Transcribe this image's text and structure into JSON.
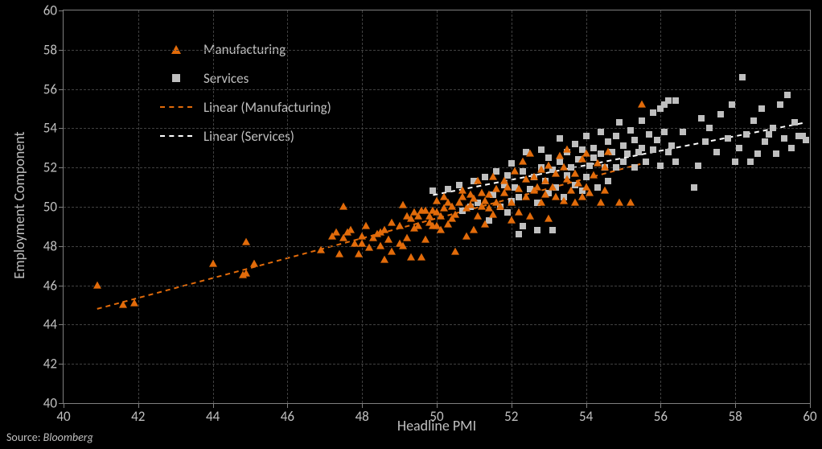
{
  "chart": {
    "type": "scatter",
    "background_color": "#000000",
    "plot_border_color": "#7f7f7f",
    "grid_color": "#404040",
    "text_color": "#bfbfbf",
    "font_family": "Calibri",
    "label_fontsize": 18,
    "tick_fontsize": 17,
    "xlabel": "Headline PMI",
    "ylabel": "Employment Component",
    "xlim": [
      40,
      60
    ],
    "ylim": [
      40,
      60
    ],
    "xticks": [
      40,
      42,
      44,
      46,
      48,
      50,
      52,
      54,
      56,
      58,
      60
    ],
    "yticks": [
      40,
      42,
      44,
      46,
      48,
      50,
      52,
      54,
      56,
      58,
      60
    ],
    "legend": {
      "position": "upper-left",
      "items": [
        {
          "label": "Manufacturing",
          "marker": "triangle",
          "color": "#e26b0a"
        },
        {
          "label": "Services",
          "marker": "square",
          "color": "#bfbfbf"
        },
        {
          "label": "Linear (Manufacturing)",
          "linestyle": "dashed",
          "color": "#e26b0a"
        },
        {
          "label": "Linear (Services)",
          "linestyle": "dashed",
          "color": "#ffffff"
        }
      ]
    },
    "series": {
      "manufacturing": {
        "marker": "triangle",
        "marker_color": "#e26b0a",
        "marker_size": 9,
        "data": [
          [
            40.9,
            46.0
          ],
          [
            41.6,
            45.0
          ],
          [
            41.9,
            45.1
          ],
          [
            44.0,
            47.1
          ],
          [
            44.8,
            46.5
          ],
          [
            44.9,
            46.6
          ],
          [
            44.9,
            48.2
          ],
          [
            45.1,
            47.1
          ],
          [
            46.9,
            47.8
          ],
          [
            47.2,
            48.5
          ],
          [
            47.3,
            48.7
          ],
          [
            47.4,
            47.6
          ],
          [
            47.5,
            50.0
          ],
          [
            47.5,
            48.4
          ],
          [
            47.6,
            48.7
          ],
          [
            47.7,
            48.8
          ],
          [
            47.8,
            48.1
          ],
          [
            47.9,
            47.6
          ],
          [
            48.0,
            48.1
          ],
          [
            48.0,
            48.5
          ],
          [
            48.1,
            49.0
          ],
          [
            48.2,
            47.9
          ],
          [
            48.3,
            48.4
          ],
          [
            48.4,
            48.6
          ],
          [
            48.5,
            48.0
          ],
          [
            48.5,
            48.7
          ],
          [
            48.6,
            47.3
          ],
          [
            48.6,
            48.8
          ],
          [
            48.7,
            48.3
          ],
          [
            48.8,
            47.7
          ],
          [
            48.8,
            49.2
          ],
          [
            49.0,
            49.0
          ],
          [
            49.0,
            48.1
          ],
          [
            49.1,
            50.1
          ],
          [
            49.1,
            48.0
          ],
          [
            49.2,
            49.5
          ],
          [
            49.2,
            48.4
          ],
          [
            49.3,
            49.4
          ],
          [
            49.3,
            47.4
          ],
          [
            49.4,
            49.7
          ],
          [
            49.4,
            48.9
          ],
          [
            49.5,
            49.0
          ],
          [
            49.5,
            49.5
          ],
          [
            49.6,
            49.8
          ],
          [
            49.6,
            47.4
          ],
          [
            49.7,
            49.8
          ],
          [
            49.7,
            48.3
          ],
          [
            49.8,
            49.5
          ],
          [
            49.8,
            49.2
          ],
          [
            49.9,
            49.8
          ],
          [
            49.9,
            49.0
          ],
          [
            50.0,
            49.7
          ],
          [
            50.0,
            49.0
          ],
          [
            50.0,
            50.3
          ],
          [
            50.1,
            49.5
          ],
          [
            50.1,
            48.8
          ],
          [
            50.2,
            49.9
          ],
          [
            50.2,
            50.5
          ],
          [
            50.3,
            49.1
          ],
          [
            50.3,
            50.2
          ],
          [
            50.4,
            49.4
          ],
          [
            50.4,
            50.0
          ],
          [
            50.5,
            47.7
          ],
          [
            50.5,
            49.6
          ],
          [
            50.6,
            50.2
          ],
          [
            50.7,
            50.5
          ],
          [
            50.7,
            50.8
          ],
          [
            50.8,
            48.5
          ],
          [
            50.8,
            49.9
          ],
          [
            50.9,
            50.6
          ],
          [
            50.9,
            50.1
          ],
          [
            51.0,
            48.8
          ],
          [
            51.0,
            50.4
          ],
          [
            51.1,
            51.3
          ],
          [
            51.1,
            49.5
          ],
          [
            51.2,
            50.0
          ],
          [
            51.2,
            50.7
          ],
          [
            51.3,
            49.1
          ],
          [
            51.3,
            50.3
          ],
          [
            51.4,
            49.9
          ],
          [
            51.4,
            50.6
          ],
          [
            51.5,
            51.5
          ],
          [
            51.5,
            49.6
          ],
          [
            51.6,
            50.2
          ],
          [
            51.6,
            50.9
          ],
          [
            51.7,
            50.0
          ],
          [
            51.8,
            50.7
          ],
          [
            51.8,
            51.3
          ],
          [
            51.9,
            51.0
          ],
          [
            52.0,
            49.3
          ],
          [
            52.0,
            50.2
          ],
          [
            52.1,
            51.8
          ],
          [
            52.2,
            49.7
          ],
          [
            52.2,
            50.9
          ],
          [
            52.3,
            52.3
          ],
          [
            52.4,
            50.5
          ],
          [
            52.4,
            51.4
          ],
          [
            52.5,
            49.5
          ],
          [
            52.5,
            52.7
          ],
          [
            52.6,
            50.8
          ],
          [
            52.6,
            51.5
          ],
          [
            52.7,
            51.0
          ],
          [
            52.8,
            50.2
          ],
          [
            52.8,
            51.9
          ],
          [
            52.9,
            50.6
          ],
          [
            52.9,
            51.3
          ],
          [
            53.0,
            49.4
          ],
          [
            53.0,
            52.1
          ],
          [
            53.1,
            51.0
          ],
          [
            53.2,
            50.5
          ],
          [
            53.2,
            51.7
          ],
          [
            53.3,
            52.6
          ],
          [
            53.4,
            50.3
          ],
          [
            53.4,
            52.0
          ],
          [
            53.5,
            51.4
          ],
          [
            53.5,
            52.9
          ],
          [
            53.6,
            50.8
          ],
          [
            53.7,
            51.7
          ],
          [
            53.7,
            50.2
          ],
          [
            53.8,
            51.2
          ],
          [
            53.9,
            52.4
          ],
          [
            53.9,
            50.5
          ],
          [
            54.0,
            51.0
          ],
          [
            54.0,
            52.7
          ],
          [
            54.1,
            50.7
          ],
          [
            54.2,
            51.6
          ],
          [
            54.3,
            52.2
          ],
          [
            54.4,
            50.2
          ],
          [
            54.5,
            52.0
          ],
          [
            54.5,
            50.8
          ],
          [
            54.6,
            52.8
          ],
          [
            54.9,
            50.2
          ],
          [
            55.2,
            50.2
          ],
          [
            55.5,
            55.2
          ]
        ]
      },
      "services": {
        "marker": "square",
        "marker_color": "#bfbfbf",
        "marker_size": 8,
        "data": [
          [
            49.9,
            50.8
          ],
          [
            50.3,
            50.9
          ],
          [
            50.6,
            51.1
          ],
          [
            50.7,
            49.8
          ],
          [
            50.9,
            50.0
          ],
          [
            51.0,
            51.3
          ],
          [
            51.1,
            50.2
          ],
          [
            51.3,
            51.5
          ],
          [
            51.4,
            49.3
          ],
          [
            51.5,
            50.6
          ],
          [
            51.6,
            51.8
          ],
          [
            51.7,
            50.0
          ],
          [
            51.8,
            51.1
          ],
          [
            51.9,
            49.7
          ],
          [
            51.9,
            51.6
          ],
          [
            52.0,
            50.3
          ],
          [
            52.0,
            52.2
          ],
          [
            52.1,
            51.0
          ],
          [
            52.2,
            50.5
          ],
          [
            52.3,
            51.8
          ],
          [
            52.2,
            48.6
          ],
          [
            52.3,
            49.0
          ],
          [
            52.4,
            52.8
          ],
          [
            52.5,
            50.9
          ],
          [
            52.6,
            51.5
          ],
          [
            52.7,
            48.8
          ],
          [
            52.7,
            50.2
          ],
          [
            52.8,
            52.0
          ],
          [
            52.8,
            52.9
          ],
          [
            52.9,
            51.3
          ],
          [
            53.0,
            50.7
          ],
          [
            53.0,
            52.5
          ],
          [
            53.1,
            48.8
          ],
          [
            53.1,
            51.9
          ],
          [
            53.2,
            51.0
          ],
          [
            53.3,
            52.3
          ],
          [
            53.3,
            53.5
          ],
          [
            53.4,
            50.5
          ],
          [
            53.5,
            52.8
          ],
          [
            53.5,
            51.6
          ],
          [
            53.6,
            52.0
          ],
          [
            53.7,
            51.1
          ],
          [
            53.7,
            53.2
          ],
          [
            53.8,
            52.4
          ],
          [
            53.9,
            50.8
          ],
          [
            53.9,
            52.9
          ],
          [
            54.0,
            53.6
          ],
          [
            54.0,
            51.5
          ],
          [
            54.1,
            52.1
          ],
          [
            54.2,
            53.0
          ],
          [
            54.2,
            52.5
          ],
          [
            54.3,
            51.0
          ],
          [
            54.4,
            52.7
          ],
          [
            54.4,
            53.8
          ],
          [
            54.5,
            52.0
          ],
          [
            54.6,
            51.3
          ],
          [
            54.6,
            53.3
          ],
          [
            54.7,
            52.8
          ],
          [
            54.8,
            52.0
          ],
          [
            54.8,
            53.6
          ],
          [
            54.9,
            54.3
          ],
          [
            55.0,
            52.3
          ],
          [
            55.0,
            53.1
          ],
          [
            55.1,
            52.7
          ],
          [
            55.2,
            53.9
          ],
          [
            55.3,
            52.0
          ],
          [
            55.3,
            53.4
          ],
          [
            55.4,
            52.8
          ],
          [
            55.5,
            54.4
          ],
          [
            55.5,
            53.0
          ],
          [
            55.6,
            52.3
          ],
          [
            55.7,
            53.7
          ],
          [
            55.8,
            52.9
          ],
          [
            55.8,
            54.8
          ],
          [
            55.9,
            53.4
          ],
          [
            56.0,
            52.1
          ],
          [
            56.0,
            55.0
          ],
          [
            56.1,
            53.8
          ],
          [
            56.1,
            55.2
          ],
          [
            56.2,
            52.8
          ],
          [
            56.2,
            55.4
          ],
          [
            56.3,
            53.1
          ],
          [
            56.4,
            52.3
          ],
          [
            56.4,
            55.4
          ],
          [
            56.6,
            53.8
          ],
          [
            56.9,
            51.0
          ],
          [
            57.0,
            52.1
          ],
          [
            57.1,
            54.5
          ],
          [
            57.2,
            53.3
          ],
          [
            57.3,
            54.0
          ],
          [
            57.5,
            52.8
          ],
          [
            57.6,
            54.7
          ],
          [
            57.8,
            53.5
          ],
          [
            57.9,
            55.2
          ],
          [
            58.0,
            52.3
          ],
          [
            58.1,
            53.0
          ],
          [
            58.2,
            56.6
          ],
          [
            58.3,
            53.7
          ],
          [
            58.4,
            52.3
          ],
          [
            58.5,
            54.4
          ],
          [
            58.6,
            52.7
          ],
          [
            58.7,
            55.0
          ],
          [
            58.8,
            53.3
          ],
          [
            58.9,
            53.7
          ],
          [
            59.0,
            54.0
          ],
          [
            59.1,
            52.7
          ],
          [
            59.2,
            55.2
          ],
          [
            59.3,
            53.5
          ],
          [
            59.4,
            55.7
          ],
          [
            59.5,
            53.0
          ],
          [
            59.6,
            54.3
          ],
          [
            59.7,
            53.6
          ],
          [
            59.8,
            53.6
          ],
          [
            59.9,
            53.4
          ]
        ]
      }
    },
    "trendlines": {
      "manufacturing": {
        "color": "#e26b0a",
        "dash": "6,5",
        "width": 2,
        "p1": [
          40.9,
          44.8
        ],
        "p2": [
          55.5,
          52.2
        ]
      },
      "services": {
        "color": "#ffffff",
        "dash": "6,5",
        "width": 2,
        "p1": [
          49.9,
          50.6
        ],
        "p2": [
          59.9,
          54.3
        ]
      }
    }
  },
  "source": {
    "label": "Source: ",
    "value": "Bloomberg"
  }
}
